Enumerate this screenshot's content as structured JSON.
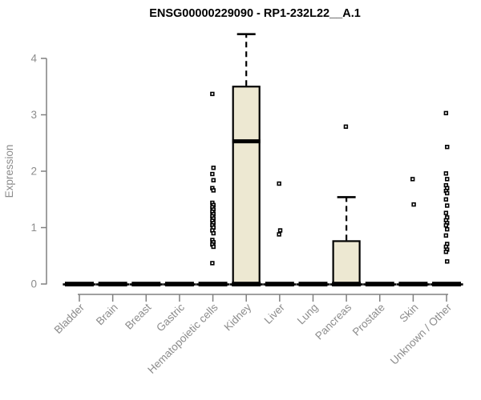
{
  "chart_data": {
    "type": "box",
    "title": "ENSG00000229090 - RP1-232L22__A.1",
    "ylabel": "Expression",
    "xlabel": "",
    "ylim": [
      0,
      4.6
    ],
    "yticks": [
      0,
      1,
      2,
      3,
      4
    ],
    "grid": false,
    "legend": "none",
    "colors": {
      "box_fill": "#EDE8D2",
      "box_stroke": "#000000",
      "axis_line": "#808080",
      "axis_text": "#8C8C8C",
      "title_text": "#000000",
      "background": "#FFFFFF"
    },
    "categories": [
      "Bladder",
      "Brain",
      "Breast",
      "Gastric",
      "Hematopoietic cells",
      "Kidney",
      "Liver",
      "Lung",
      "Pancreas",
      "Prostate",
      "Skin",
      "Unknown / Other"
    ],
    "boxes": [
      {
        "category": "Bladder",
        "min": 0,
        "q1": 0,
        "median": 0,
        "q3": 0,
        "max": 0,
        "outliers": []
      },
      {
        "category": "Brain",
        "min": 0,
        "q1": 0,
        "median": 0,
        "q3": 0,
        "max": 0,
        "outliers": []
      },
      {
        "category": "Breast",
        "min": 0,
        "q1": 0,
        "median": 0,
        "q3": 0,
        "max": 0,
        "outliers": []
      },
      {
        "category": "Gastric",
        "min": 0,
        "q1": 0,
        "median": 0,
        "q3": 0,
        "max": 0,
        "outliers": []
      },
      {
        "category": "Hematopoietic cells",
        "min": 0,
        "q1": 0,
        "median": 0,
        "q3": 0,
        "max": 0,
        "outliers": [
          3.37,
          2.06,
          1.95,
          1.84,
          1.7,
          1.66,
          1.44,
          1.4,
          1.36,
          1.32,
          1.28,
          1.24,
          1.2,
          1.16,
          1.12,
          1.08,
          1.04,
          1.0,
          0.95,
          0.9,
          0.78,
          0.74,
          0.7,
          0.66,
          0.37
        ]
      },
      {
        "category": "Kidney",
        "min": 0,
        "q1": 0,
        "median": 2.53,
        "q3": 3.5,
        "max": 4.43,
        "outliers": []
      },
      {
        "category": "Liver",
        "min": 0,
        "q1": 0,
        "median": 0,
        "q3": 0,
        "max": 0,
        "outliers": [
          1.78,
          0.95,
          0.88
        ]
      },
      {
        "category": "Lung",
        "min": 0,
        "q1": 0,
        "median": 0,
        "q3": 0,
        "max": 0,
        "outliers": []
      },
      {
        "category": "Pancreas",
        "min": 0,
        "q1": 0,
        "median": 0,
        "q3": 0.76,
        "max": 1.54,
        "outliers": [
          2.79
        ]
      },
      {
        "category": "Prostate",
        "min": 0,
        "q1": 0,
        "median": 0,
        "q3": 0,
        "max": 0,
        "outliers": []
      },
      {
        "category": "Skin",
        "min": 0,
        "q1": 0,
        "median": 0,
        "q3": 0,
        "max": 0,
        "outliers": [
          1.86,
          1.41
        ]
      },
      {
        "category": "Unknown / Other",
        "min": 0,
        "q1": 0,
        "median": 0,
        "q3": 0,
        "max": 0,
        "outliers": [
          3.03,
          2.43,
          1.96,
          1.86,
          1.75,
          1.7,
          1.65,
          1.61,
          1.5,
          1.39,
          1.26,
          1.18,
          1.13,
          1.08,
          1.04,
          0.97,
          0.86,
          0.71,
          0.66,
          0.61,
          0.57,
          0.4
        ]
      }
    ]
  }
}
